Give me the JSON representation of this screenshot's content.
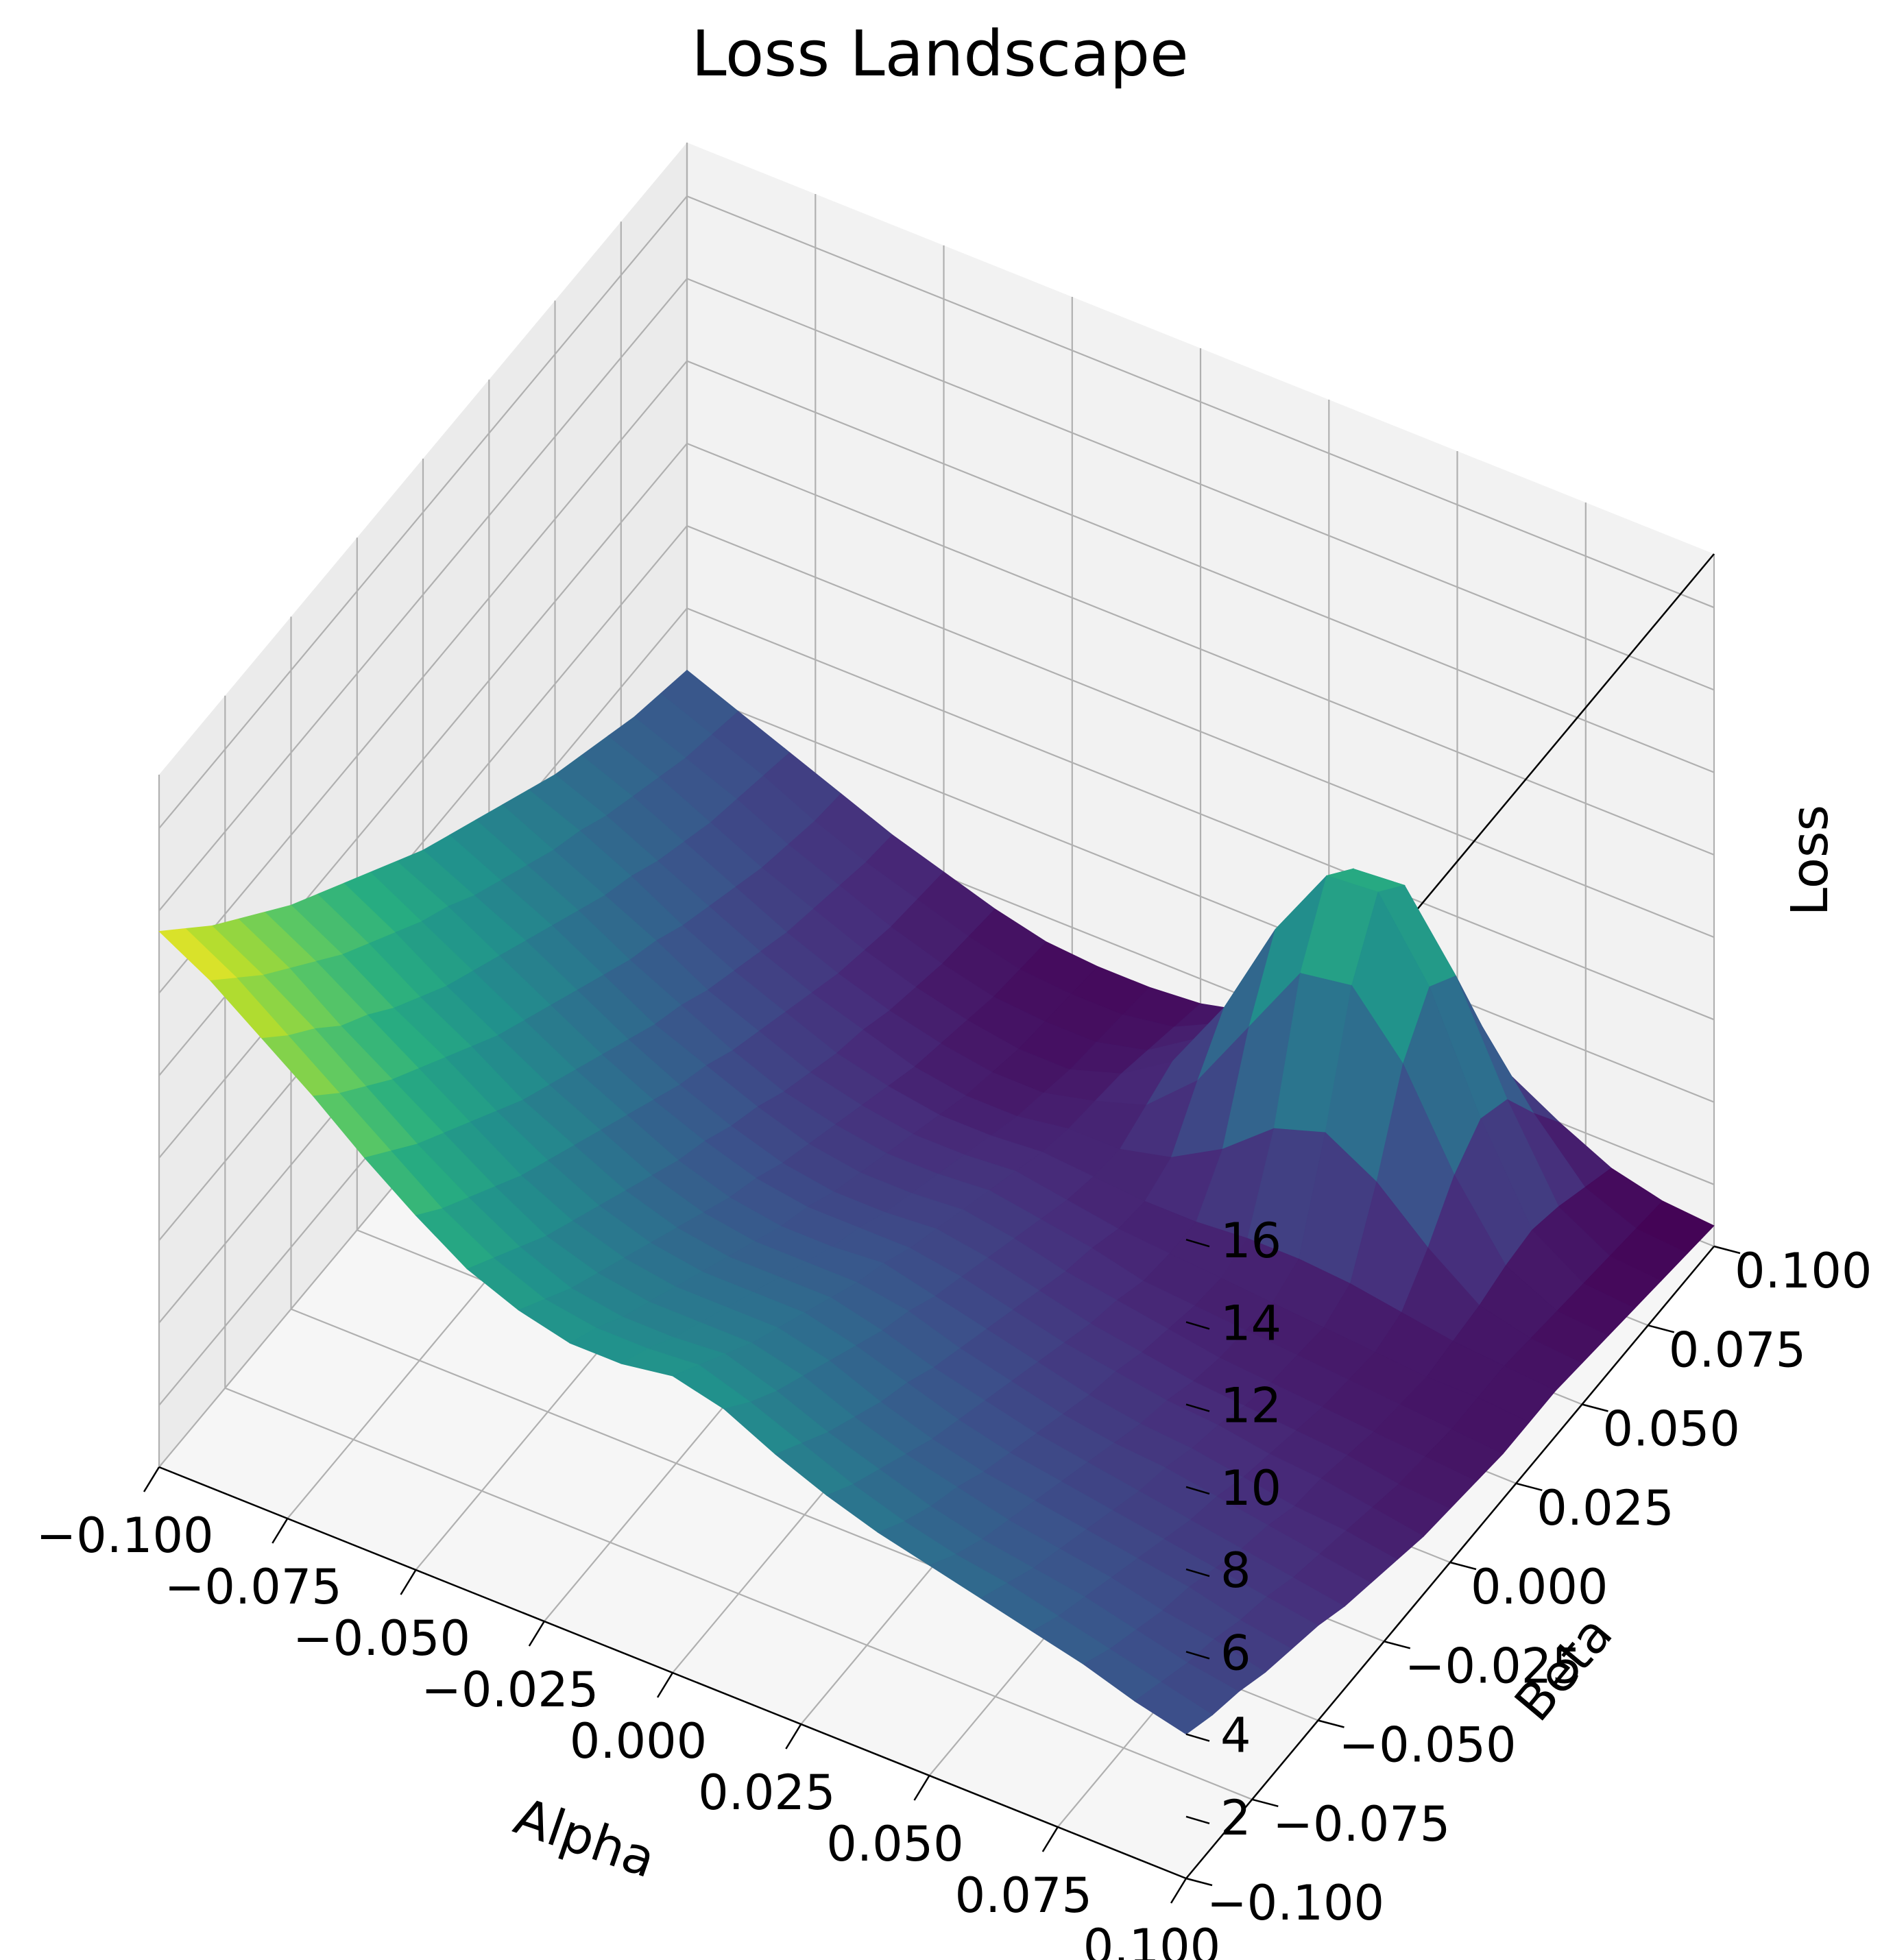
{
  "chart_data": {
    "type": "surface3d",
    "title": "Loss Landscape",
    "xlabel": "Alpha",
    "ylabel": "Beta",
    "zlabel": "Loss",
    "x_ticks": [
      "−0.100",
      "−0.075",
      "−0.050",
      "−0.025",
      "0.000",
      "0.025",
      "0.050",
      "0.075",
      "0.100"
    ],
    "y_ticks": [
      "−0.100",
      "−0.075",
      "−0.050",
      "−0.025",
      "0.000",
      "0.025",
      "0.050",
      "0.075",
      "0.100"
    ],
    "z_ticks": [
      "2",
      "4",
      "6",
      "8",
      "10",
      "12",
      "14",
      "16"
    ],
    "x_range": [
      -0.1,
      0.1
    ],
    "y_range": [
      -0.1,
      0.1
    ],
    "z_range": [
      0.5,
      17.3
    ],
    "grid": true,
    "colormap": "viridis",
    "colormap_stops": [
      "#440154",
      "#472d7b",
      "#3b528b",
      "#2c728e",
      "#21918c",
      "#28ae80",
      "#5ec962",
      "#addc30",
      "#fde725"
    ],
    "pane_colors": {
      "back": "#f2f2f2",
      "side": "#ebebeb",
      "floor": "#f6f6f6"
    },
    "x_values": [
      -0.1,
      -0.09,
      -0.08,
      -0.07,
      -0.06,
      -0.05,
      -0.04,
      -0.03,
      -0.02,
      -0.01,
      0.0,
      0.01,
      0.02,
      0.03,
      0.04,
      0.05,
      0.06,
      0.07,
      0.08,
      0.09,
      0.1
    ],
    "y_values": [
      -0.1,
      -0.09,
      -0.08,
      -0.07,
      -0.06,
      -0.05,
      -0.04,
      -0.03,
      -0.02,
      -0.01,
      0.0,
      0.01,
      0.02,
      0.03,
      0.04,
      0.05,
      0.06,
      0.07,
      0.08,
      0.09,
      0.1
    ],
    "z_values": [
      [
        13.5,
        12.8,
        11.9,
        11.0,
        10.0,
        9.1,
        8.3,
        7.8,
        7.5,
        7.5,
        7.7,
        7.4,
        6.8,
        6.3,
        5.9,
        5.6,
        5.3,
        5.0,
        4.7,
        4.3,
        4.0
      ],
      [
        12.8,
        12.1,
        11.2,
        10.3,
        9.4,
        8.5,
        7.8,
        7.3,
        7.1,
        7.1,
        7.2,
        6.8,
        6.3,
        5.8,
        5.4,
        5.1,
        4.9,
        4.6,
        4.3,
        4.0,
        3.7
      ],
      [
        12.1,
        11.4,
        10.6,
        9.7,
        8.8,
        8.0,
        7.3,
        6.8,
        6.6,
        6.6,
        6.7,
        6.3,
        5.8,
        5.4,
        5.0,
        4.7,
        4.5,
        4.3,
        4.0,
        3.7,
        3.5
      ],
      [
        11.5,
        10.8,
        9.9,
        9.1,
        8.3,
        7.5,
        6.8,
        6.4,
        6.2,
        6.2,
        6.2,
        5.9,
        5.4,
        5.0,
        4.7,
        4.4,
        4.2,
        4.0,
        3.7,
        3.5,
        3.2
      ],
      [
        10.9,
        10.2,
        9.4,
        8.6,
        7.8,
        7.0,
        6.4,
        6.0,
        5.8,
        5.8,
        5.8,
        5.5,
        5.0,
        4.6,
        4.3,
        4.1,
        3.9,
        3.7,
        3.5,
        3.2,
        3.0
      ],
      [
        10.3,
        9.6,
        8.8,
        8.1,
        7.3,
        6.6,
        6.0,
        5.6,
        5.4,
        5.4,
        5.4,
        5.1,
        4.7,
        4.3,
        4.0,
        3.8,
        3.6,
        3.4,
        3.2,
        3.0,
        2.8
      ],
      [
        9.8,
        9.1,
        8.3,
        7.6,
        6.8,
        6.2,
        5.6,
        5.2,
        5.0,
        5.0,
        5.0,
        4.7,
        4.3,
        4.0,
        3.7,
        3.5,
        3.3,
        3.1,
        2.9,
        2.7,
        2.5
      ],
      [
        9.3,
        8.6,
        7.8,
        7.1,
        6.4,
        5.8,
        5.2,
        4.8,
        4.6,
        4.6,
        4.6,
        4.4,
        4.0,
        3.7,
        3.4,
        3.2,
        3.1,
        2.9,
        2.7,
        2.5,
        2.3
      ],
      [
        8.8,
        8.1,
        7.4,
        6.7,
        6.0,
        5.4,
        4.8,
        4.4,
        4.2,
        4.2,
        4.3,
        4.0,
        3.7,
        3.4,
        3.1,
        2.9,
        2.8,
        2.6,
        2.4,
        2.3,
        2.1
      ],
      [
        8.3,
        7.7,
        7.0,
        6.3,
        5.6,
        5.0,
        4.5,
        4.1,
        3.9,
        3.9,
        3.9,
        3.7,
        3.4,
        3.1,
        2.9,
        2.7,
        2.6,
        2.4,
        2.3,
        2.1,
        1.9
      ],
      [
        7.8,
        7.2,
        6.6,
        5.9,
        5.2,
        4.6,
        4.1,
        3.7,
        3.5,
        3.5,
        3.6,
        3.4,
        3.1,
        2.8,
        2.6,
        2.4,
        2.3,
        2.2,
        2.1,
        1.9,
        1.8
      ],
      [
        7.4,
        6.8,
        6.2,
        5.5,
        4.8,
        4.3,
        3.8,
        3.4,
        3.2,
        3.2,
        3.3,
        3.1,
        2.8,
        2.6,
        2.4,
        2.2,
        2.1,
        2.0,
        1.9,
        1.8,
        1.7
      ],
      [
        7.0,
        6.4,
        5.8,
        5.1,
        4.5,
        3.9,
        3.4,
        3.1,
        2.9,
        2.9,
        3.0,
        2.8,
        2.6,
        2.3,
        2.2,
        2.1,
        2.0,
        1.9,
        1.8,
        1.7,
        1.6
      ],
      [
        6.6,
        6.0,
        5.4,
        4.8,
        4.1,
        3.6,
        3.1,
        2.8,
        2.6,
        2.6,
        2.7,
        2.5,
        2.3,
        2.2,
        2.1,
        2.0,
        1.9,
        1.8,
        1.7,
        1.7,
        1.6
      ],
      [
        6.2,
        5.7,
        5.1,
        4.4,
        3.8,
        3.3,
        2.8,
        2.5,
        2.3,
        2.3,
        2.4,
        2.3,
        2.2,
        2.2,
        2.3,
        2.3,
        2.2,
        2.0,
        1.8,
        1.7,
        1.6
      ],
      [
        5.8,
        5.3,
        4.7,
        4.1,
        3.5,
        3.0,
        2.6,
        2.2,
        2.0,
        2.0,
        2.2,
        2.2,
        2.5,
        3.2,
        4.2,
        4.6,
        3.9,
        2.8,
        1.9,
        1.6,
        1.5
      ],
      [
        5.5,
        5.0,
        4.4,
        3.8,
        3.2,
        2.7,
        2.3,
        2.0,
        1.8,
        1.8,
        2.1,
        2.5,
        3.6,
        5.4,
        7.2,
        7.4,
        6.0,
        3.8,
        2.1,
        1.5,
        1.4
      ],
      [
        5.2,
        4.7,
        4.1,
        3.5,
        3.0,
        2.5,
        2.1,
        1.8,
        1.6,
        1.6,
        2.0,
        2.8,
        4.6,
        7.0,
        8.8,
        8.9,
        7.1,
        4.4,
        2.2,
        1.4,
        1.3
      ],
      [
        4.9,
        4.4,
        3.9,
        3.3,
        2.8,
        2.3,
        1.9,
        1.6,
        1.5,
        1.5,
        1.8,
        2.6,
        4.3,
        6.5,
        8.2,
        8.3,
        6.6,
        4.1,
        2.0,
        1.3,
        1.2
      ],
      [
        4.7,
        4.2,
        3.7,
        3.1,
        2.6,
        2.2,
        1.8,
        1.5,
        1.4,
        1.4,
        1.6,
        2.2,
        3.2,
        4.6,
        5.6,
        5.7,
        4.6,
        3.0,
        1.7,
        1.2,
        1.1
      ],
      [
        4.5,
        4.0,
        3.5,
        3.0,
        2.5,
        2.1,
        1.7,
        1.4,
        1.3,
        1.3,
        1.4,
        1.7,
        2.2,
        2.8,
        3.2,
        3.2,
        2.7,
        2.0,
        1.4,
        1.1,
        1.0
      ]
    ]
  }
}
